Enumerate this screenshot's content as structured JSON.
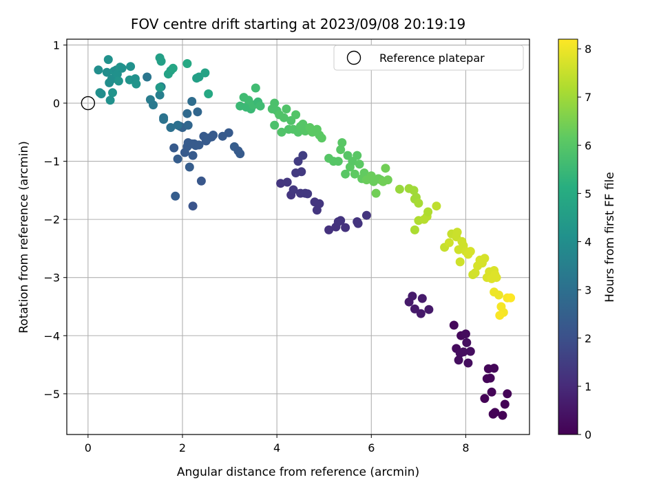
{
  "chart_data": {
    "type": "scatter",
    "title": "FOV centre drift starting at 2023/09/08 20:19:19",
    "xlabel": "Angular distance from reference (arcmin)",
    "ylabel": "Rotation from reference (arcmin)",
    "xlim": [
      -0.45,
      9.35
    ],
    "ylim": [
      -5.7,
      1.1
    ],
    "xticks": [
      0,
      2,
      4,
      6,
      8
    ],
    "yticks": [
      1,
      0,
      -1,
      -2,
      -3,
      -4,
      -5
    ],
    "grid": true,
    "legend": {
      "position": "top-right",
      "entries": [
        "Reference platepar"
      ]
    },
    "reference_point": {
      "x": 0,
      "y": 0
    },
    "colorbar": {
      "label": "Hours from first FF file",
      "range": [
        0,
        8.2
      ],
      "ticks": [
        0,
        1,
        2,
        3,
        4,
        5,
        6,
        7,
        8
      ],
      "colormap": "viridis"
    },
    "series": [
      {
        "points": [
          [
            7.75,
            -3.82
          ],
          [
            7.8,
            -4.22
          ],
          [
            7.85,
            -4.42
          ],
          [
            7.9,
            -4.0
          ],
          [
            7.95,
            -4.28
          ],
          [
            8.0,
            -3.97
          ],
          [
            8.02,
            -4.12
          ],
          [
            8.05,
            -4.47
          ],
          [
            8.1,
            -4.27
          ],
          [
            7.88,
            -4.3
          ],
          [
            8.4,
            -5.08
          ],
          [
            8.45,
            -4.74
          ],
          [
            8.48,
            -4.57
          ],
          [
            8.52,
            -4.73
          ],
          [
            8.55,
            -4.97
          ],
          [
            8.58,
            -5.35
          ],
          [
            8.6,
            -4.56
          ],
          [
            8.62,
            -5.32
          ],
          [
            8.78,
            -5.37
          ],
          [
            8.83,
            -5.18
          ],
          [
            8.88,
            -5.0
          ],
          [
            6.8,
            -3.42
          ],
          [
            6.87,
            -3.32
          ],
          [
            6.92,
            -3.54
          ],
          [
            7.05,
            -3.62
          ],
          [
            7.08,
            -3.36
          ],
          [
            7.22,
            -3.55
          ],
          [
            4.08,
            -1.38
          ],
          [
            4.22,
            -1.36
          ],
          [
            4.3,
            -1.58
          ],
          [
            4.35,
            -1.49
          ],
          [
            4.4,
            -1.2
          ],
          [
            4.45,
            -1.0
          ],
          [
            4.5,
            -1.55
          ],
          [
            4.52,
            -1.18
          ],
          [
            4.55,
            -0.9
          ],
          [
            4.6,
            -1.55
          ],
          [
            4.65,
            -1.56
          ],
          [
            4.8,
            -1.7
          ],
          [
            4.85,
            -1.84
          ],
          [
            4.9,
            -1.73
          ],
          [
            5.1,
            -2.18
          ],
          [
            5.25,
            -2.13
          ],
          [
            5.3,
            -2.04
          ],
          [
            5.35,
            -2.02
          ],
          [
            5.45,
            -2.14
          ],
          [
            5.7,
            -2.04
          ],
          [
            5.72,
            -2.07
          ],
          [
            5.9,
            -1.93
          ],
          [
            1.82,
            -0.77
          ],
          [
            1.85,
            -1.6
          ],
          [
            1.9,
            -0.96
          ],
          [
            1.95,
            -0.4
          ],
          [
            2.0,
            -0.42
          ],
          [
            2.05,
            -0.85
          ],
          [
            2.1,
            -0.75
          ],
          [
            2.12,
            -0.68
          ],
          [
            2.15,
            -1.1
          ],
          [
            2.2,
            -0.7
          ],
          [
            2.22,
            -0.9
          ],
          [
            2.25,
            -0.7
          ],
          [
            2.28,
            -0.73
          ],
          [
            2.22,
            -1.77
          ],
          [
            2.35,
            -0.72
          ],
          [
            2.4,
            -1.34
          ],
          [
            2.45,
            -0.57
          ],
          [
            2.5,
            -0.65
          ],
          [
            2.55,
            -0.6
          ],
          [
            2.62,
            -0.58
          ],
          [
            2.65,
            -0.55
          ],
          [
            2.85,
            -0.57
          ],
          [
            2.98,
            -0.51
          ],
          [
            3.1,
            -0.75
          ],
          [
            3.18,
            -0.82
          ],
          [
            3.22,
            -0.87
          ],
          [
            2.1,
            -0.18
          ],
          [
            2.12,
            -0.38
          ],
          [
            2.2,
            0.03
          ],
          [
            2.32,
            -0.15
          ],
          [
            1.6,
            -0.28
          ],
          [
            1.6,
            -0.25
          ],
          [
            1.75,
            -0.42
          ],
          [
            1.9,
            -0.38
          ],
          [
            1.25,
            0.45
          ],
          [
            1.32,
            0.06
          ],
          [
            1.38,
            -0.03
          ],
          [
            1.52,
            0.14
          ],
          [
            1.55,
            0.28
          ],
          [
            0.22,
            0.57
          ],
          [
            0.25,
            0.18
          ],
          [
            0.28,
            0.16
          ],
          [
            0.4,
            0.53
          ],
          [
            0.43,
            0.75
          ],
          [
            0.45,
            0.35
          ],
          [
            0.47,
            0.05
          ],
          [
            0.5,
            0.41
          ],
          [
            0.52,
            0.18
          ],
          [
            0.55,
            0.55
          ],
          [
            0.6,
            0.57
          ],
          [
            0.62,
            0.5
          ],
          [
            0.65,
            0.38
          ],
          [
            0.68,
            0.62
          ],
          [
            0.72,
            0.6
          ],
          [
            0.88,
            0.4
          ],
          [
            0.9,
            0.63
          ],
          [
            1.0,
            0.42
          ],
          [
            1.02,
            0.33
          ],
          [
            1.52,
            0.78
          ],
          [
            1.55,
            0.72
          ],
          [
            1.52,
            0.27
          ],
          [
            1.7,
            0.5
          ],
          [
            1.75,
            0.56
          ],
          [
            1.8,
            0.6
          ],
          [
            2.1,
            0.68
          ],
          [
            2.3,
            0.43
          ],
          [
            2.35,
            0.45
          ],
          [
            2.48,
            0.52
          ],
          [
            2.55,
            0.16
          ],
          [
            3.22,
            -0.05
          ],
          [
            3.3,
            0.1
          ],
          [
            3.35,
            -0.07
          ],
          [
            3.4,
            0.05
          ],
          [
            3.45,
            -0.1
          ],
          [
            3.5,
            -0.03
          ],
          [
            3.55,
            0.26
          ],
          [
            3.6,
            0.02
          ],
          [
            3.65,
            -0.05
          ],
          [
            3.9,
            -0.1
          ],
          [
            3.95,
            0.0
          ],
          [
            4.0,
            -0.13
          ],
          [
            3.95,
            -0.38
          ],
          [
            4.05,
            -0.2
          ],
          [
            4.1,
            -0.5
          ],
          [
            4.15,
            -0.25
          ],
          [
            4.2,
            -0.1
          ],
          [
            4.25,
            -0.45
          ],
          [
            4.3,
            -0.3
          ],
          [
            4.35,
            -0.45
          ],
          [
            4.4,
            -0.2
          ],
          [
            4.45,
            -0.5
          ],
          [
            4.5,
            -0.4
          ],
          [
            4.55,
            -0.36
          ],
          [
            4.6,
            -0.48
          ],
          [
            4.7,
            -0.42
          ],
          [
            4.75,
            -0.5
          ],
          [
            4.85,
            -0.45
          ],
          [
            4.9,
            -0.55
          ],
          [
            4.95,
            -0.6
          ],
          [
            5.1,
            -0.95
          ],
          [
            5.2,
            -1.0
          ],
          [
            5.3,
            -1.0
          ],
          [
            5.35,
            -0.8
          ],
          [
            5.38,
            -0.68
          ],
          [
            5.45,
            -1.22
          ],
          [
            5.5,
            -0.9
          ],
          [
            5.55,
            -1.1
          ],
          [
            5.6,
            -1.0
          ],
          [
            5.65,
            -1.22
          ],
          [
            5.7,
            -0.9
          ],
          [
            5.75,
            -1.05
          ],
          [
            5.8,
            -1.3
          ],
          [
            5.85,
            -1.2
          ],
          [
            5.9,
            -1.32
          ],
          [
            6.0,
            -1.25
          ],
          [
            6.05,
            -1.35
          ],
          [
            6.1,
            -1.55
          ],
          [
            6.15,
            -1.3
          ],
          [
            6.2,
            -1.32
          ],
          [
            6.25,
            -1.35
          ],
          [
            6.3,
            -1.12
          ],
          [
            6.35,
            -1.32
          ],
          [
            6.6,
            -1.48
          ],
          [
            6.8,
            -1.47
          ],
          [
            6.9,
            -1.5
          ],
          [
            6.92,
            -1.65
          ],
          [
            6.95,
            -1.62
          ],
          [
            7.0,
            -1.72
          ],
          [
            6.92,
            -2.18
          ],
          [
            7.0,
            -2.02
          ],
          [
            7.12,
            -2.0
          ],
          [
            7.18,
            -1.95
          ],
          [
            7.2,
            -1.87
          ],
          [
            7.38,
            -1.77
          ],
          [
            7.55,
            -2.48
          ],
          [
            7.65,
            -2.4
          ],
          [
            7.7,
            -2.25
          ],
          [
            7.8,
            -2.3
          ],
          [
            7.82,
            -2.22
          ],
          [
            7.85,
            -2.52
          ],
          [
            7.88,
            -2.73
          ],
          [
            7.92,
            -2.38
          ],
          [
            7.95,
            -2.45
          ],
          [
            8.0,
            -2.55
          ],
          [
            8.05,
            -2.6
          ],
          [
            8.1,
            -2.55
          ],
          [
            8.15,
            -2.95
          ],
          [
            8.2,
            -2.92
          ],
          [
            8.25,
            -2.8
          ],
          [
            8.3,
            -2.7
          ],
          [
            8.35,
            -2.75
          ],
          [
            8.4,
            -2.67
          ],
          [
            8.45,
            -3.0
          ],
          [
            8.5,
            -2.9
          ],
          [
            8.55,
            -3.02
          ],
          [
            8.6,
            -2.88
          ],
          [
            8.62,
            -2.95
          ],
          [
            8.65,
            -3.0
          ],
          [
            8.6,
            -3.25
          ],
          [
            8.7,
            -3.3
          ],
          [
            8.75,
            -3.5
          ],
          [
            8.8,
            -3.6
          ],
          [
            8.88,
            -3.35
          ],
          [
            8.95,
            -3.35
          ],
          [
            8.72,
            -3.65
          ]
        ],
        "hours": [
          0.2,
          0.25,
          0.3,
          0.2,
          0.3,
          0.25,
          0.3,
          0.3,
          0.3,
          0.3,
          0.05,
          0.1,
          0.12,
          0.1,
          0.08,
          0.05,
          0.12,
          0.05,
          0.03,
          0.05,
          0.08,
          0.6,
          0.62,
          0.6,
          0.58,
          0.62,
          0.6,
          1.3,
          1.32,
          1.3,
          1.35,
          1.4,
          1.45,
          1.35,
          1.4,
          1.5,
          1.38,
          1.38,
          1.3,
          1.3,
          1.3,
          1.2,
          1.2,
          1.25,
          1.25,
          1.22,
          1.25,
          1.25,
          1.28,
          2.3,
          2.4,
          2.4,
          2.6,
          2.55,
          2.3,
          2.35,
          2.35,
          2.4,
          2.35,
          2.3,
          2.35,
          2.35,
          2.1,
          2.35,
          2.2,
          2.3,
          2.3,
          2.35,
          2.3,
          2.3,
          2.3,
          2.3,
          2.4,
          2.35,
          2.35,
          2.8,
          2.7,
          2.9,
          2.7,
          3.1,
          3.1,
          3.0,
          3.0,
          3.2,
          3.4,
          3.3,
          3.5,
          3.5,
          4.0,
          4.1,
          4.0,
          4.0,
          4.1,
          4.0,
          4.1,
          4.0,
          4.2,
          4.1,
          4.0,
          4.1,
          4.2,
          4.2,
          4.1,
          4.2,
          4.1,
          4.1,
          4.2,
          4.6,
          4.6,
          4.4,
          4.7,
          4.7,
          4.8,
          4.9,
          4.6,
          4.6,
          4.7,
          4.9,
          5.5,
          5.6,
          5.5,
          5.6,
          5.5,
          5.6,
          5.6,
          5.5,
          5.6,
          5.8,
          5.8,
          5.8,
          5.8,
          5.9,
          5.9,
          5.9,
          5.9,
          5.9,
          5.9,
          5.95,
          5.95,
          5.95,
          6.0,
          6.0,
          6.0,
          6.1,
          6.1,
          6.1,
          6.1,
          6.1,
          6.0,
          6.0,
          6.0,
          6.05,
          6.05,
          6.05,
          6.0,
          6.1,
          6.05,
          6.15,
          6.05,
          6.1,
          6.2,
          6.2,
          6.3,
          6.3,
          6.3,
          6.4,
          6.3,
          6.3,
          6.4,
          6.4,
          6.4,
          6.9,
          7.0,
          7.0,
          7.05,
          7.0,
          7.1,
          7.15,
          7.2,
          7.3,
          7.3,
          7.2,
          7.4,
          7.5,
          7.6,
          7.5,
          7.55,
          7.55,
          7.6,
          7.6,
          7.6,
          7.6,
          7.65,
          7.7,
          7.7,
          7.6,
          7.65,
          7.7,
          7.7,
          7.7,
          7.7,
          7.75,
          7.75,
          7.8,
          7.75,
          7.8,
          7.8,
          8.0,
          8.0,
          8.1,
          8.1,
          8.15,
          8.2,
          8.15
        ]
      }
    ]
  }
}
